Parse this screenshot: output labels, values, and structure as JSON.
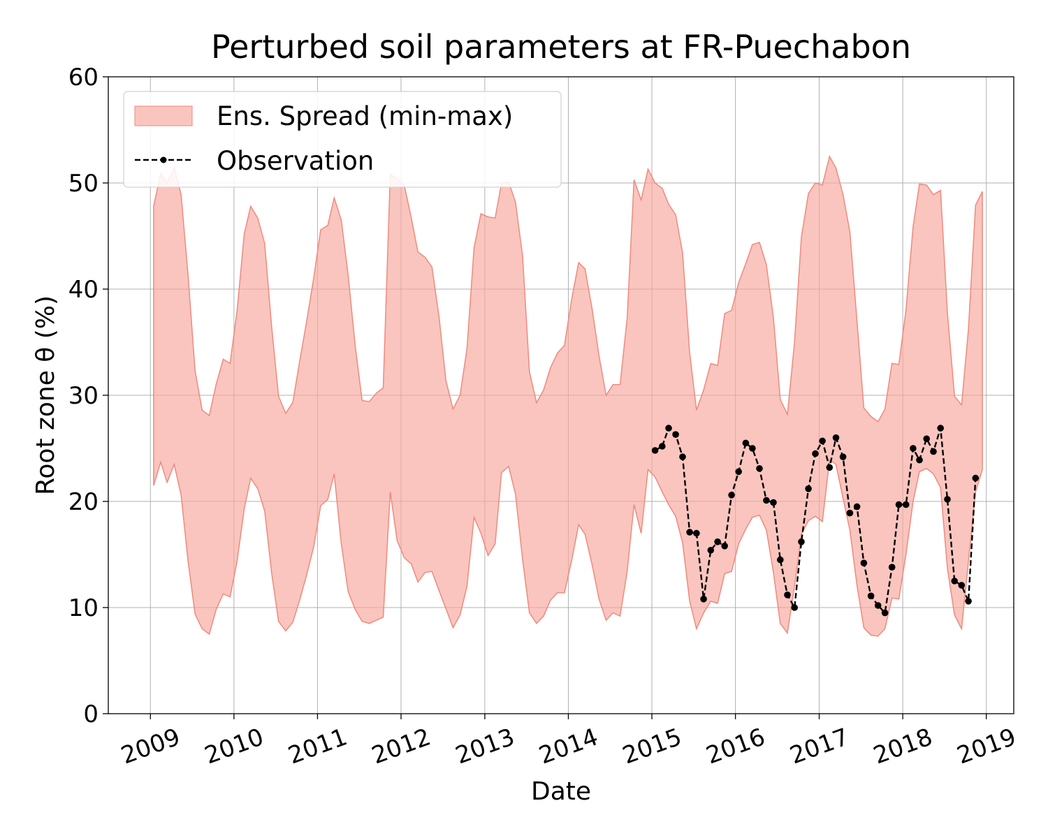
{
  "chart_data": {
    "type": "area",
    "title": "Perturbed soil parameters at FR-Puechabon",
    "xlabel": "Date",
    "ylabel": "Root zone θ  (%)",
    "xlim": [
      "2008-07-01",
      "2019-05-01"
    ],
    "ylim": [
      0,
      60
    ],
    "x_ticks": [
      "2009",
      "2010",
      "2011",
      "2012",
      "2013",
      "2014",
      "2015",
      "2016",
      "2017",
      "2018",
      "2019"
    ],
    "y_ticks": [
      0,
      10,
      20,
      30,
      40,
      50,
      60
    ],
    "grid": true,
    "legend_position": "top-left",
    "colors": {
      "spread_fill": "#f7a69b",
      "spread_edge": "#ef8a7e",
      "observation": "#000000"
    },
    "series": [
      {
        "name": "Ens. Spread (min-max)",
        "kind": "band",
        "dates": [
          "2009-01-15",
          "2009-02-15",
          "2009-03-15",
          "2009-04-15",
          "2009-05-15",
          "2009-06-15",
          "2009-07-15",
          "2009-08-15",
          "2009-09-15",
          "2009-10-15",
          "2009-11-15",
          "2009-12-15",
          "2010-01-15",
          "2010-02-15",
          "2010-03-15",
          "2010-04-15",
          "2010-05-15",
          "2010-06-15",
          "2010-07-15",
          "2010-08-15",
          "2010-09-15",
          "2010-10-15",
          "2010-11-15",
          "2010-12-15",
          "2011-01-15",
          "2011-02-15",
          "2011-03-15",
          "2011-04-15",
          "2011-05-15",
          "2011-06-15",
          "2011-07-15",
          "2011-08-15",
          "2011-09-15",
          "2011-10-15",
          "2011-11-15",
          "2011-12-15",
          "2012-01-15",
          "2012-02-15",
          "2012-03-15",
          "2012-04-15",
          "2012-05-15",
          "2012-06-15",
          "2012-07-15",
          "2012-08-15",
          "2012-09-15",
          "2012-10-15",
          "2012-11-15",
          "2012-12-15",
          "2013-01-15",
          "2013-02-15",
          "2013-03-15",
          "2013-04-15",
          "2013-05-15",
          "2013-06-15",
          "2013-07-15",
          "2013-08-15",
          "2013-09-15",
          "2013-10-15",
          "2013-11-15",
          "2013-12-15",
          "2014-01-15",
          "2014-02-15",
          "2014-03-15",
          "2014-04-15",
          "2014-05-15",
          "2014-06-15",
          "2014-07-15",
          "2014-08-15",
          "2014-09-15",
          "2014-10-15",
          "2014-11-15",
          "2014-12-15",
          "2015-01-15",
          "2015-02-15",
          "2015-03-15",
          "2015-04-15",
          "2015-05-15",
          "2015-06-15",
          "2015-07-15",
          "2015-08-15",
          "2015-09-15",
          "2015-10-15",
          "2015-11-15",
          "2015-12-15",
          "2016-01-15",
          "2016-02-15",
          "2016-03-15",
          "2016-04-15",
          "2016-05-15",
          "2016-06-15",
          "2016-07-15",
          "2016-08-15",
          "2016-09-15",
          "2016-10-15",
          "2016-11-15",
          "2016-12-15",
          "2017-01-15",
          "2017-02-15",
          "2017-03-15",
          "2017-04-15",
          "2017-05-15",
          "2017-06-15",
          "2017-07-15",
          "2017-08-15",
          "2017-09-15",
          "2017-10-15",
          "2017-11-15",
          "2017-12-15",
          "2018-01-15",
          "2018-02-15",
          "2018-03-15",
          "2018-04-15",
          "2018-05-15",
          "2018-06-15",
          "2018-07-15",
          "2018-08-15",
          "2018-09-15",
          "2018-10-15",
          "2018-11-15",
          "2018-12-15"
        ],
        "max": [
          47.8,
          50.9,
          50.0,
          51.5,
          48.9,
          41.2,
          32.3,
          28.6,
          28.1,
          31.0,
          33.4,
          33.0,
          38.0,
          45.2,
          47.8,
          46.7,
          44.3,
          36.4,
          29.9,
          28.3,
          29.3,
          33.2,
          37.0,
          41.0,
          45.6,
          46.0,
          48.6,
          46.5,
          41.3,
          34.6,
          29.5,
          29.4,
          30.2,
          30.7,
          50.8,
          50.4,
          49.8,
          46.7,
          43.5,
          43.0,
          42.1,
          37.4,
          31.4,
          28.7,
          30.0,
          34.4,
          43.9,
          47.1,
          46.8,
          46.7,
          50.0,
          50.1,
          48.2,
          43.1,
          32.2,
          29.3,
          30.5,
          32.6,
          34.0,
          34.7,
          39.0,
          42.5,
          41.9,
          38.1,
          33.7,
          30.0,
          31.0,
          31.0,
          37.3,
          50.3,
          48.4,
          51.3,
          50.0,
          49.5,
          48.0,
          47.0,
          43.4,
          34.0,
          28.6,
          30.5,
          33.0,
          32.8,
          37.7,
          38.0,
          40.6,
          42.4,
          44.2,
          44.4,
          42.3,
          37.3,
          29.6,
          28.2,
          35.0,
          44.9,
          49.0,
          50.0,
          49.8,
          52.5,
          51.4,
          48.9,
          45.4,
          37.0,
          28.8,
          28.0,
          27.5,
          28.7,
          33.0,
          32.9,
          38.0,
          45.9,
          49.9,
          49.8,
          48.9,
          49.3,
          37.8,
          29.9,
          29.1,
          36.2,
          47.9,
          49.2
        ],
        "min": [
          21.5,
          23.7,
          21.8,
          23.5,
          20.6,
          14.3,
          9.4,
          8.0,
          7.5,
          9.8,
          11.3,
          11.0,
          14.4,
          19.3,
          22.2,
          21.2,
          19.1,
          13.2,
          8.7,
          7.8,
          8.6,
          10.7,
          13.1,
          15.7,
          19.6,
          20.2,
          22.6,
          16.0,
          11.5,
          9.8,
          8.7,
          8.5,
          8.8,
          9.1,
          20.9,
          16.3,
          14.7,
          14.1,
          12.4,
          13.3,
          13.4,
          11.6,
          9.9,
          8.1,
          9.3,
          12.0,
          18.5,
          17.0,
          14.9,
          16.0,
          22.7,
          23.3,
          20.7,
          14.5,
          9.5,
          8.5,
          9.2,
          10.7,
          11.4,
          11.4,
          14.4,
          17.8,
          16.9,
          14.0,
          10.8,
          8.8,
          9.5,
          9.2,
          13.4,
          19.7,
          17.0,
          23.0,
          22.3,
          20.9,
          19.7,
          18.6,
          16.1,
          10.6,
          8.0,
          9.5,
          10.6,
          10.4,
          13.2,
          13.4,
          16.0,
          17.4,
          18.5,
          18.7,
          17.3,
          13.3,
          8.5,
          7.6,
          12.0,
          16.9,
          18.2,
          18.6,
          18.1,
          23.9,
          23.5,
          20.3,
          17.3,
          12.1,
          8.1,
          7.4,
          7.3,
          8.0,
          10.9,
          10.8,
          15.0,
          20.0,
          22.8,
          23.1,
          22.6,
          21.3,
          13.7,
          9.3,
          8.0,
          14.3,
          20.9,
          23.0
        ]
      },
      {
        "name": "Observation",
        "kind": "line",
        "dates": [
          "2015-01-15",
          "2015-02-15",
          "2015-03-15",
          "2015-04-15",
          "2015-05-15",
          "2015-06-15",
          "2015-07-15",
          "2015-08-15",
          "2015-09-15",
          "2015-10-15",
          "2015-11-15",
          "2015-12-15",
          "2016-01-15",
          "2016-02-15",
          "2016-03-15",
          "2016-04-15",
          "2016-05-15",
          "2016-06-15",
          "2016-07-15",
          "2016-08-15",
          "2016-09-15",
          "2016-10-15",
          "2016-11-15",
          "2016-12-15",
          "2017-01-15",
          "2017-02-15",
          "2017-03-15",
          "2017-04-15",
          "2017-05-15",
          "2017-06-15",
          "2017-07-15",
          "2017-08-15",
          "2017-09-15",
          "2017-10-15",
          "2017-11-15",
          "2017-12-15",
          "2018-01-15",
          "2018-02-15",
          "2018-03-15",
          "2018-04-15",
          "2018-05-15",
          "2018-06-15",
          "2018-07-15",
          "2018-08-15",
          "2018-09-15",
          "2018-10-15",
          "2018-11-15"
        ],
        "values": [
          24.8,
          25.2,
          26.9,
          26.3,
          24.2,
          17.1,
          17.0,
          10.8,
          15.4,
          16.2,
          15.8,
          20.6,
          22.8,
          25.5,
          25.0,
          23.1,
          20.1,
          19.9,
          14.5,
          11.2,
          10.0,
          16.2,
          21.2,
          24.5,
          25.7,
          23.2,
          26.0,
          24.2,
          18.9,
          19.5,
          14.2,
          11.1,
          10.2,
          9.5,
          13.8,
          19.7,
          19.7,
          25.0,
          23.9,
          25.9,
          24.7,
          26.9,
          20.2,
          12.5,
          12.1,
          10.6,
          22.2
        ]
      }
    ]
  }
}
